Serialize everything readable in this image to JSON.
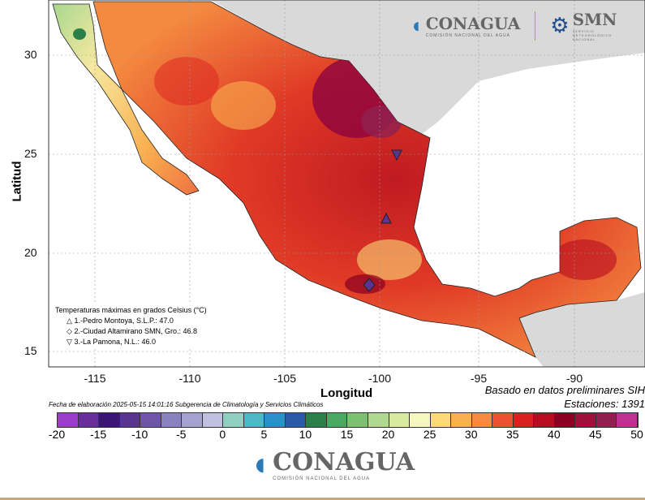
{
  "axes": {
    "ylabel": "Latitud",
    "xlabel": "Longitud",
    "yticks": [
      "30",
      "25",
      "20",
      "15"
    ],
    "xticks": [
      "-115",
      "-110",
      "-105",
      "-100",
      "-95",
      "-90"
    ]
  },
  "legend": {
    "title": "Temperaturas máximas en grados Celsius (°C)",
    "items": [
      {
        "symbol": "△",
        "text": "1.-Pedro Montoya, S.L.P.: 47.0"
      },
      {
        "symbol": "◇",
        "text": "2.-Ciudad Altamirano SMN, Gro.: 46.8"
      },
      {
        "symbol": "▽",
        "text": "3.-La Pamona, N.L.: 46.0"
      }
    ]
  },
  "notes": {
    "source": "Basado en datos preliminares SIH",
    "stations": "Estaciones:  1391",
    "fecha": "Fecha de elaboración 2025-05-15 14:01:16 Subgerencia de Climatología y Servicios Climáticos"
  },
  "colorbar": {
    "labels": [
      "-20",
      "-15",
      "-10",
      "-5",
      "0",
      "5",
      "10",
      "15",
      "20",
      "25",
      "30",
      "35",
      "40",
      "45",
      "50"
    ],
    "colors": [
      "#9b3fc9",
      "#6a2e9a",
      "#3d1478",
      "#5a3590",
      "#6f55a8",
      "#8a82c0",
      "#a6a2cf",
      "#c0c0e0",
      "#8fd0c0",
      "#4fb8c8",
      "#2a90c8",
      "#2a5aa8",
      "#2a8048",
      "#4aa860",
      "#7cc070",
      "#b0d890",
      "#d8eaa0",
      "#f6f6c0",
      "#fcd878",
      "#f9b050",
      "#f58a40",
      "#ee5030",
      "#dc2020",
      "#b80c20",
      "#8a0020",
      "#a0103a",
      "#902050",
      "#c03090"
    ]
  },
  "logos": {
    "conagua": "CONAGUA",
    "conagua_sub": "COMISIÓN NACIONAL DEL AGUA",
    "smn": "SMN",
    "smn_sub": "SERVICIO METEOROLÓGICO NACIONAL"
  }
}
